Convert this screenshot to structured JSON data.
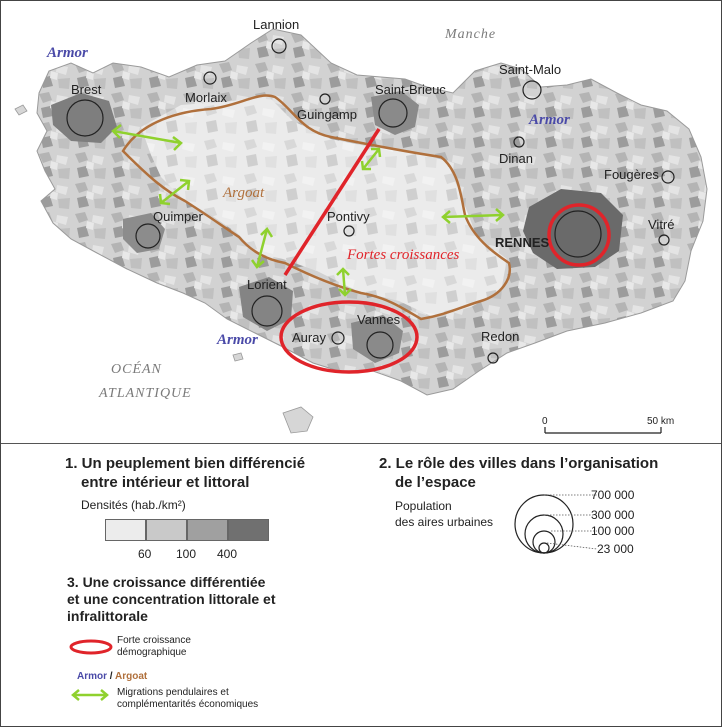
{
  "map": {
    "seas": {
      "manche": "Manche",
      "ocean_line1": "OCÉAN",
      "ocean_line2": "ATLANTIQUE"
    },
    "regions": {
      "armor": "Armor",
      "argoat": "Argoat"
    },
    "growth_label": "Fortes croissances",
    "cities": {
      "brest": "Brest",
      "lannion": "Lannion",
      "morlaix": "Morlaix",
      "guingamp": "Guingamp",
      "saint_brieuc": "Saint-Brieuc",
      "saint_malo": "Saint-Malo",
      "dinan": "Dinan",
      "fougeres": "Fougères",
      "vitre": "Vitré",
      "rennes": "RENNES",
      "quimper": "Quimper",
      "pontivy": "Pontivy",
      "lorient": "Lorient",
      "auray": "Auray",
      "vannes": "Vannes",
      "redon": "Redon"
    },
    "scale": {
      "zero": "0",
      "max": "50 km"
    }
  },
  "legend": {
    "section1": {
      "title_line1": "1. Un peuplement bien différencié",
      "title_line2": "entre intérieur et littoral",
      "density_label": "Densités (hab./km²)",
      "swatch_colors": [
        "#ececec",
        "#c9c9c9",
        "#a0a0a0",
        "#707070"
      ],
      "ticks": [
        "60",
        "100",
        "400"
      ]
    },
    "section2": {
      "title_line1": "2. Le rôle des villes dans l’organisation",
      "title_line2": "de l’espace",
      "pop_label_line1": "Population",
      "pop_label_line2": "des aires urbaines",
      "pop_values": [
        "700 000",
        "300 000",
        "100 000",
        "23 000"
      ]
    },
    "section3": {
      "title_line1": "3. Une croissance différentiée",
      "title_line2": "et une concentration littorale et",
      "title_line3": "infralittorale",
      "growth_item_line1": "Forte croissance",
      "growth_item_line2": "démographique",
      "armor": "Armor",
      "slash": " / ",
      "argoat": "Argoat",
      "migration_line1": "Migrations pendulaires et",
      "migration_line2": "complémentarités économiques"
    },
    "colors": {
      "armor": "#4a4aa8",
      "argoat": "#b0703c",
      "growth": "#e0242a",
      "migration": "#8fd12e"
    }
  }
}
